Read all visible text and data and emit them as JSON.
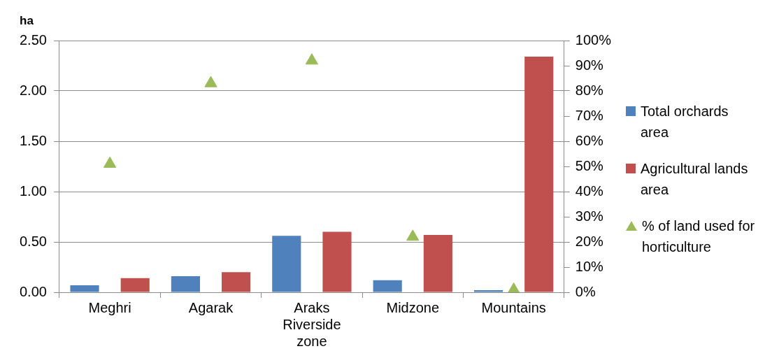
{
  "chart_data": {
    "type": "bar",
    "ylabel": "ha",
    "categories": [
      "Meghri",
      "Agarak",
      "Araks Riverside zone",
      "Midzone",
      "Mountains"
    ],
    "series": [
      {
        "name": "Total orchards area",
        "color": "#4f81bd",
        "values": [
          0.07,
          0.16,
          0.56,
          0.12,
          0.02
        ]
      },
      {
        "name": "Agricultural lands area",
        "color": "#c0504d",
        "values": [
          0.14,
          0.2,
          0.6,
          0.57,
          2.34
        ]
      },
      {
        "name": "% of land used for horticulture",
        "type": "scatter",
        "axis": "y2",
        "marker": "triangle",
        "color": "#9bbb59",
        "values": [
          51,
          83,
          92,
          22,
          1
        ]
      }
    ],
    "ylim": [
      0,
      2.5
    ],
    "yticks": [
      {
        "value": 0,
        "label": "0.00"
      },
      {
        "value": 0.5,
        "label": "0.50"
      },
      {
        "value": 1,
        "label": "1.00"
      },
      {
        "value": 1.5,
        "label": "1.50"
      },
      {
        "value": 2,
        "label": "2.00"
      },
      {
        "value": 2.5,
        "label": "2.50"
      }
    ],
    "y2lim": [
      0,
      100
    ],
    "y2ticks": [
      {
        "value": 0,
        "label": "0%"
      },
      {
        "value": 10,
        "label": "10%"
      },
      {
        "value": 20,
        "label": "20%"
      },
      {
        "value": 30,
        "label": "30%"
      },
      {
        "value": 40,
        "label": "40%"
      },
      {
        "value": 50,
        "label": "50%"
      },
      {
        "value": 60,
        "label": "60%"
      },
      {
        "value": 70,
        "label": "70%"
      },
      {
        "value": 80,
        "label": "80%"
      },
      {
        "value": 90,
        "label": "90%"
      },
      {
        "value": 100,
        "label": "100%"
      }
    ],
    "grid": "y",
    "legend": "right"
  }
}
